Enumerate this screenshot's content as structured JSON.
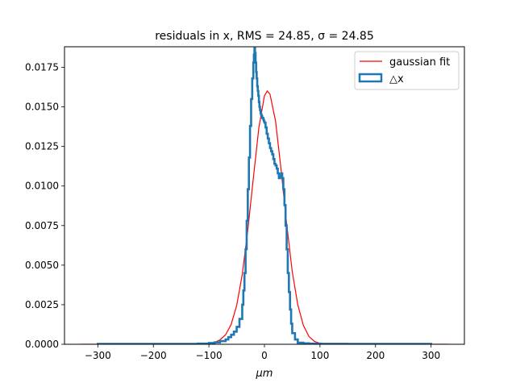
{
  "chart_data": {
    "type": "line",
    "title": "residuals in x, RMS = 24.85, σ = 24.85",
    "xlabel": "μm",
    "ylabel": "",
    "xlim": [
      -360,
      360
    ],
    "ylim": [
      0,
      0.0188
    ],
    "xticks": [
      -300,
      -200,
      -100,
      0,
      100,
      200,
      300
    ],
    "xtick_labels": [
      "−300",
      "−200",
      "−100",
      "0",
      "100",
      "200",
      "300"
    ],
    "yticks": [
      0,
      0.0025,
      0.005,
      0.0075,
      0.01,
      0.0125,
      0.015,
      0.0175
    ],
    "ytick_labels": [
      "0.0000",
      "0.0025",
      "0.0050",
      "0.0075",
      "0.0100",
      "0.0125",
      "0.0150",
      "0.0175"
    ],
    "grid": false,
    "legend": "top-right",
    "series": [
      {
        "name": "gaussian fit",
        "color": "#ff0000",
        "style": "line",
        "x": [
          -330,
          -120,
          -100,
          -90,
          -80,
          -70,
          -60,
          -50,
          -40,
          -30,
          -20,
          -10,
          0,
          5,
          10,
          20,
          30,
          40,
          50,
          60,
          70,
          80,
          90,
          100,
          120,
          330
        ],
        "y": [
          0,
          0,
          5e-05,
          0.00012,
          0.00028,
          0.0006,
          0.00125,
          0.00245,
          0.0044,
          0.0072,
          0.0105,
          0.0137,
          0.0157,
          0.016,
          0.0158,
          0.0141,
          0.011,
          0.0076,
          0.0046,
          0.0025,
          0.0012,
          0.0005,
          0.00018,
          6e-05,
          1e-05,
          0
        ]
      },
      {
        "name": "△x",
        "color": "#1f77b4",
        "style": "step",
        "x": [
          -300,
          -120,
          -100,
          -90,
          -80,
          -70,
          -65,
          -60,
          -55,
          -50,
          -45,
          -40,
          -38,
          -36,
          -34,
          -32,
          -30,
          -28,
          -26,
          -24,
          -22,
          -20,
          -19,
          -18,
          -17,
          -16,
          -15,
          -14,
          -13,
          -12,
          -11,
          -10,
          -9,
          -8,
          -7,
          -6,
          -5,
          -4,
          -3,
          -2,
          -1,
          0,
          2,
          4,
          6,
          8,
          10,
          12,
          14,
          16,
          18,
          20,
          22,
          24,
          26,
          28,
          30,
          32,
          34,
          36,
          38,
          40,
          42,
          44,
          46,
          48,
          50,
          55,
          60,
          70,
          80,
          100,
          150,
          200,
          250,
          300
        ],
        "y": [
          2e-05,
          4e-05,
          8e-05,
          0.00012,
          0.0002,
          0.0003,
          0.00045,
          0.0006,
          0.0008,
          0.0011,
          0.0016,
          0.0025,
          0.0034,
          0.0045,
          0.006,
          0.0078,
          0.0098,
          0.0118,
          0.0138,
          0.0155,
          0.0168,
          0.0178,
          0.0183,
          0.0187,
          0.0184,
          0.0178,
          0.0172,
          0.0168,
          0.0163,
          0.016,
          0.0157,
          0.0153,
          0.015,
          0.0148,
          0.0146,
          0.0145,
          0.0144,
          0.0143,
          0.0143,
          0.0142,
          0.0141,
          0.014,
          0.0137,
          0.0133,
          0.013,
          0.0127,
          0.0124,
          0.0122,
          0.012,
          0.0117,
          0.0114,
          0.0113,
          0.0111,
          0.0108,
          0.0105,
          0.0106,
          0.0108,
          0.0105,
          0.0098,
          0.0088,
          0.0075,
          0.006,
          0.0045,
          0.0033,
          0.0022,
          0.0013,
          0.0007,
          0.0003,
          0.0001,
          6e-05,
          4e-05,
          3e-05,
          2e-05,
          2e-05,
          2e-05,
          2e-05
        ]
      }
    ]
  }
}
